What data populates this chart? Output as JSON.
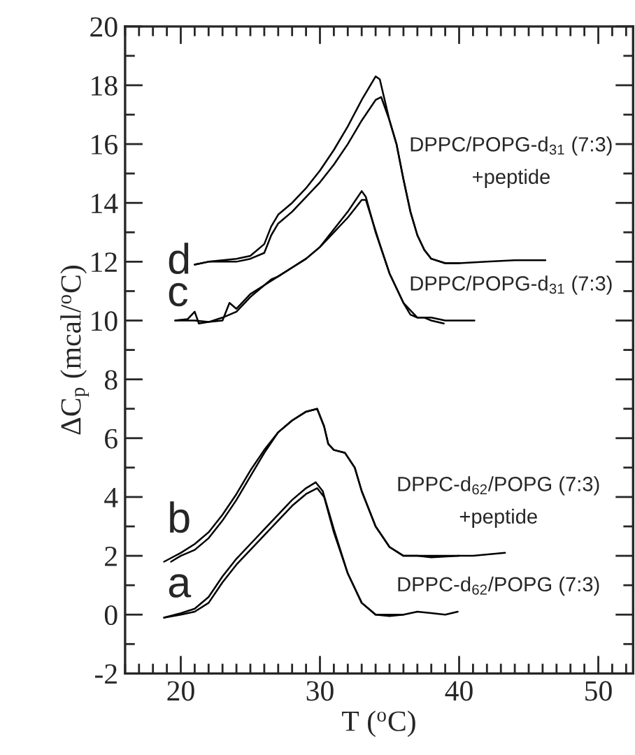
{
  "chart_data": {
    "type": "line",
    "xlabel": "T ($^{o}$C)",
    "ylabel": "ΔC$_{p}$ (mcal/$^{o}$C)",
    "xlim": [
      16,
      52.5
    ],
    "xticks": [
      20,
      30,
      40,
      50
    ],
    "ylim": [
      -2,
      20
    ],
    "yticks": [
      -2,
      0,
      2,
      4,
      6,
      8,
      10,
      12,
      14,
      16,
      18,
      20
    ],
    "grid": false,
    "legend": false,
    "marker": "none",
    "line_style": "solid",
    "series": [
      {
        "color": "#000000",
        "x": [
          18.8,
          20,
          21,
          22,
          23,
          24,
          25,
          26,
          27,
          28,
          29,
          29.8,
          30.3,
          31,
          32,
          33,
          34,
          35,
          36,
          37,
          38,
          39,
          39.9
        ],
        "values": [
          -0.1,
          0,
          0.1,
          0.4,
          1.1,
          1.7,
          2.2,
          2.7,
          3.2,
          3.7,
          4.1,
          4.3,
          4.0,
          2.8,
          1.4,
          0.4,
          0,
          -0.05,
          0,
          0.1,
          0.05,
          0,
          0.1
        ]
      },
      {
        "color": "#000000",
        "x": [
          18.8,
          20,
          21,
          22,
          23,
          24,
          25,
          26,
          27,
          28,
          29,
          29.7,
          30.2,
          31,
          32,
          33,
          34,
          35,
          36
        ],
        "values": [
          -0.1,
          0.05,
          0.2,
          0.6,
          1.3,
          1.9,
          2.4,
          2.9,
          3.4,
          3.9,
          4.3,
          4.5,
          4.2,
          2.9,
          1.4,
          0.4,
          0,
          0,
          0
        ]
      },
      {
        "color": "#000000",
        "x": [
          18.8,
          20,
          21,
          22,
          23,
          24,
          25,
          26,
          27,
          28,
          29,
          29.8,
          30.3,
          30.6,
          31,
          31.8,
          32.5,
          33,
          34,
          35,
          36,
          37,
          38,
          40,
          41,
          43.3
        ],
        "values": [
          1.8,
          2.1,
          2.4,
          2.8,
          3.4,
          4.1,
          4.9,
          5.6,
          6.2,
          6.6,
          6.9,
          7.0,
          6.4,
          5.8,
          5.6,
          5.5,
          5.0,
          4.2,
          3.0,
          2.3,
          2.0,
          2.0,
          1.95,
          2.0,
          2.0,
          2.1
        ]
      },
      {
        "color": "#000000",
        "x": [
          19.3,
          20,
          21,
          22,
          23,
          24,
          25,
          26,
          27,
          28,
          29,
          29.8,
          30.3,
          30.6,
          31,
          31.8,
          32.5,
          33,
          34,
          35,
          36,
          37,
          38,
          40
        ],
        "values": [
          1.8,
          2.0,
          2.2,
          2.6,
          3.2,
          3.9,
          4.7,
          5.5,
          6.2,
          6.6,
          6.9,
          7.0,
          6.4,
          5.8,
          5.6,
          5.5,
          5.0,
          4.2,
          3.0,
          2.3,
          2.0,
          2.0,
          2.0,
          2.0
        ]
      },
      {
        "color": "#000000",
        "x": [
          19.6,
          20.5,
          21,
          21.3,
          22,
          23,
          23.5,
          24,
          25,
          26,
          26.5,
          27,
          28,
          29,
          30,
          31,
          32,
          33,
          33.3,
          34,
          35,
          36,
          36.5,
          37,
          38,
          39,
          41.1
        ],
        "values": [
          10.0,
          10.05,
          10.3,
          9.9,
          9.95,
          10.0,
          10.6,
          10.4,
          10.9,
          11.2,
          11.4,
          11.5,
          11.8,
          12.1,
          12.5,
          13.1,
          13.7,
          14.4,
          14.2,
          13.0,
          11.6,
          10.6,
          10.2,
          10.1,
          10.1,
          10.0,
          10.0
        ]
      },
      {
        "color": "#000000",
        "x": [
          19.6,
          21,
          22,
          23,
          24,
          25,
          26,
          27,
          28,
          29,
          30,
          31,
          32,
          33,
          33.3,
          34.3,
          35,
          36,
          37,
          37.5,
          38,
          38.9
        ],
        "values": [
          10.0,
          10.0,
          9.95,
          10.1,
          10.3,
          10.8,
          11.2,
          11.5,
          11.8,
          12.1,
          12.5,
          13.0,
          13.5,
          14.1,
          14.1,
          12.6,
          11.6,
          10.6,
          10.1,
          10.1,
          10.0,
          9.9
        ]
      },
      {
        "color": "#000000",
        "x": [
          21,
          22,
          24,
          25,
          26,
          26.5,
          27,
          28,
          29,
          30,
          31,
          32,
          33,
          34,
          34.3,
          35,
          35.5,
          36,
          36.5,
          37,
          37.5,
          38,
          39,
          40,
          42,
          44,
          46.2
        ],
        "values": [
          11.9,
          12.0,
          12.1,
          12.2,
          12.6,
          13.2,
          13.6,
          14.0,
          14.5,
          15.1,
          15.8,
          16.6,
          17.5,
          18.3,
          18.2,
          16.8,
          16.0,
          14.8,
          13.7,
          12.9,
          12.4,
          12.1,
          11.95,
          11.95,
          12.0,
          12.05,
          12.05
        ]
      },
      {
        "color": "#000000",
        "x": [
          21,
          22,
          24,
          25,
          26,
          26.5,
          27,
          28,
          29,
          30,
          31,
          32,
          33,
          34,
          34.4,
          35,
          35.5,
          36,
          36.5,
          37,
          37.5,
          38,
          39,
          40
        ],
        "values": [
          11.9,
          12.0,
          12.0,
          12.1,
          12.3,
          12.9,
          13.3,
          13.7,
          14.2,
          14.7,
          15.3,
          16.0,
          16.8,
          17.5,
          17.6,
          16.8,
          16.0,
          14.8,
          13.7,
          12.9,
          12.4,
          12.1,
          11.95,
          11.95
        ]
      }
    ],
    "annotations": [
      "a",
      "b",
      "c",
      "d",
      "DPPC-d$_{62}$/POPG (7:3)",
      "DPPC-d$_{62}$/POPG (7:3)\n+peptide",
      "DPPC/POPG-d$_{31}$ (7:3)",
      "DPPC/POPG-d$_{31}$ (7:3)\n+peptide"
    ]
  }
}
